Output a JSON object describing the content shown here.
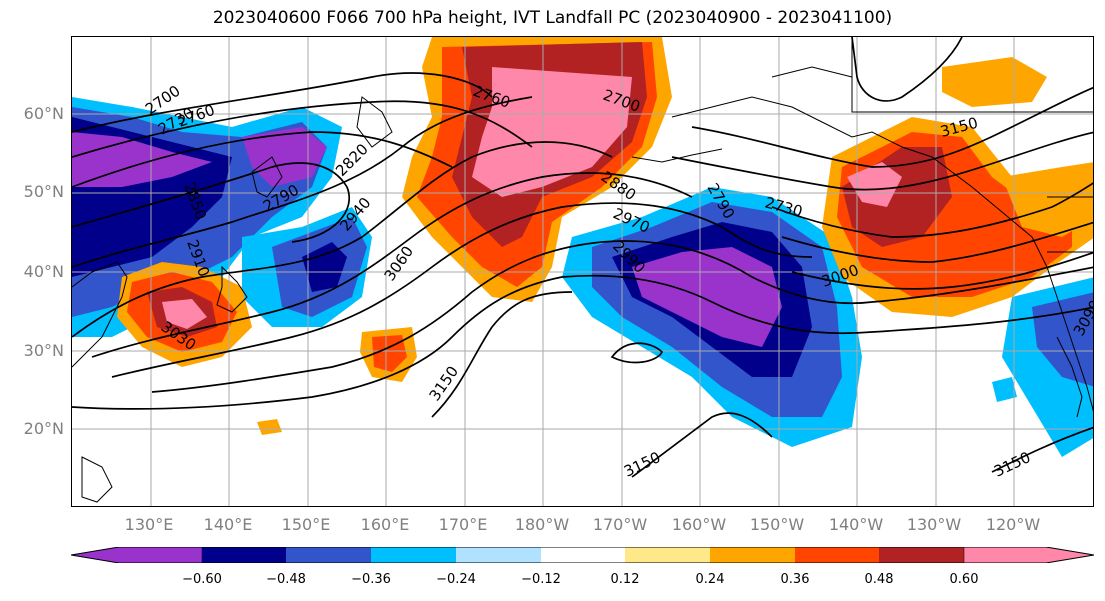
{
  "title": "2023040600 F066 700 hPa height, IVT Landfall PC (2023040900 - 2023041100)",
  "lat_labels": [
    "60°N",
    "50°N",
    "40°N",
    "30°N",
    "20°N"
  ],
  "lon_labels": [
    "130°E",
    "140°E",
    "150°E",
    "160°E",
    "170°E",
    "180°W",
    "170°W",
    "160°W",
    "150°W",
    "140°W",
    "130°W",
    "120°W"
  ],
  "contour_labels": [
    "2700",
    "2730",
    "2760",
    "2760",
    "2700",
    "2820",
    "2790",
    "2850",
    "2910",
    "2940",
    "2880",
    "2970",
    "3060",
    "3030",
    "3150",
    "3150",
    "3150",
    "2790",
    "2730",
    "3000",
    "3090",
    "2990",
    "3150"
  ],
  "colorbar": {
    "ticks": [
      "−0.60",
      "−0.48",
      "−0.36",
      "−0.24",
      "−0.12",
      "0.12",
      "0.24",
      "0.36",
      "0.48",
      "0.60"
    ],
    "colors": [
      "#9933cc",
      "#00008b",
      "#3355cc",
      "#00bfff",
      "#b0e2ff",
      "#ffffff",
      "#ffe88a",
      "#ffa500",
      "#ff4500",
      "#b22222",
      "#ff88aa"
    ]
  },
  "palette": {
    "c_m060": "#9933cc",
    "c_m048": "#00008b",
    "c_m036": "#3355cc",
    "c_m024": "#00bfff",
    "c_m012": "#b0e2ff",
    "c_p012": "#ffe88a",
    "c_p024": "#ffa500",
    "c_p036": "#ff4500",
    "c_p048": "#b22222",
    "c_p060": "#ff88aa"
  }
}
